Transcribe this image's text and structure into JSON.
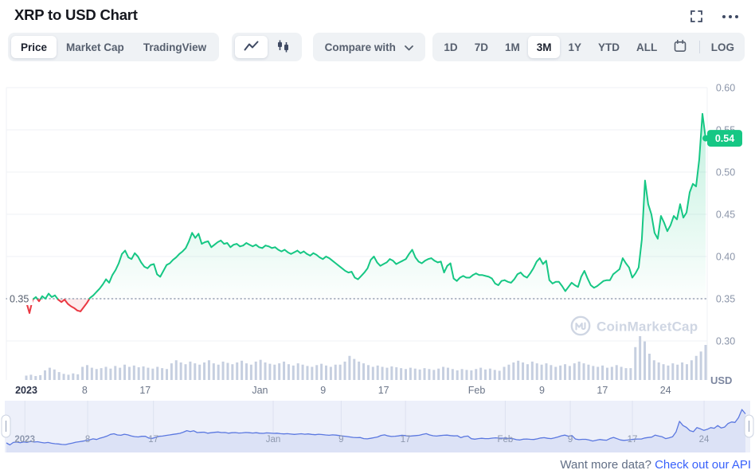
{
  "header": {
    "title": "XRP to USD Chart"
  },
  "toolbar": {
    "view_tabs": [
      {
        "label": "Price",
        "selected": true
      },
      {
        "label": "Market Cap",
        "selected": false
      },
      {
        "label": "TradingView",
        "selected": false
      }
    ],
    "chart_types": [
      {
        "name": "line-chart",
        "selected": true
      },
      {
        "name": "candlestick-chart",
        "selected": false
      }
    ],
    "compare_label": "Compare with",
    "ranges": [
      "1D",
      "7D",
      "1M",
      "3M",
      "1Y",
      "YTD",
      "ALL"
    ],
    "selected_range": "3M",
    "log_label": "LOG"
  },
  "watermark": {
    "text": "CoinMarketCap"
  },
  "footer": {
    "prompt": "Want more data?",
    "link": "Check out our API"
  },
  "chart_data": {
    "type": "line",
    "title": "XRP to USD, 3 month price chart",
    "unit_label": "USD",
    "baseline": 0.35,
    "baseline_label": "0.35",
    "last_price": 0.54,
    "last_price_label": "0.54",
    "ylim": [
      0.3,
      0.6
    ],
    "y_ticks": [
      "0.60",
      "0.55",
      "0.50",
      "0.45",
      "0.40",
      "0.35",
      "0.30"
    ],
    "x_ticks": [
      {
        "label": "2023",
        "pos": 0.0,
        "bold": true
      },
      {
        "label": "8",
        "pos": 0.086
      },
      {
        "label": "17",
        "pos": 0.175
      },
      {
        "label": "Jan",
        "pos": 0.344
      },
      {
        "label": "9",
        "pos": 0.437
      },
      {
        "label": "17",
        "pos": 0.526
      },
      {
        "label": "Feb",
        "pos": 0.663
      },
      {
        "label": "9",
        "pos": 0.759
      },
      {
        "label": "17",
        "pos": 0.848
      },
      {
        "label": "24",
        "pos": 0.941
      }
    ],
    "nav_tick_pos": [
      0.025,
      0.11,
      0.199,
      0.361,
      0.453,
      0.54,
      0.675,
      0.763,
      0.847,
      0.944
    ],
    "prices": [
      0.346,
      0.333,
      0.349,
      0.352,
      0.347,
      0.353,
      0.35,
      0.356,
      0.352,
      0.354,
      0.349,
      0.346,
      0.349,
      0.344,
      0.341,
      0.339,
      0.336,
      0.335,
      0.34,
      0.345,
      0.351,
      0.354,
      0.358,
      0.362,
      0.367,
      0.373,
      0.369,
      0.378,
      0.384,
      0.392,
      0.403,
      0.407,
      0.399,
      0.397,
      0.404,
      0.4,
      0.393,
      0.388,
      0.386,
      0.39,
      0.391,
      0.379,
      0.376,
      0.383,
      0.39,
      0.392,
      0.396,
      0.399,
      0.403,
      0.406,
      0.41,
      0.418,
      0.428,
      0.422,
      0.427,
      0.415,
      0.417,
      0.418,
      0.411,
      0.414,
      0.417,
      0.419,
      0.415,
      0.416,
      0.411,
      0.414,
      0.415,
      0.412,
      0.413,
      0.416,
      0.414,
      0.412,
      0.414,
      0.411,
      0.41,
      0.413,
      0.412,
      0.41,
      0.411,
      0.408,
      0.406,
      0.408,
      0.405,
      0.403,
      0.405,
      0.407,
      0.404,
      0.406,
      0.403,
      0.401,
      0.404,
      0.402,
      0.399,
      0.397,
      0.4,
      0.398,
      0.395,
      0.392,
      0.389,
      0.386,
      0.383,
      0.381,
      0.382,
      0.375,
      0.373,
      0.377,
      0.381,
      0.386,
      0.396,
      0.4,
      0.393,
      0.389,
      0.391,
      0.393,
      0.397,
      0.395,
      0.391,
      0.393,
      0.395,
      0.397,
      0.403,
      0.408,
      0.399,
      0.394,
      0.392,
      0.395,
      0.397,
      0.398,
      0.395,
      0.393,
      0.394,
      0.381,
      0.389,
      0.392,
      0.374,
      0.371,
      0.375,
      0.377,
      0.375,
      0.375,
      0.378,
      0.38,
      0.378,
      0.378,
      0.377,
      0.376,
      0.374,
      0.368,
      0.366,
      0.371,
      0.372,
      0.37,
      0.369,
      0.373,
      0.379,
      0.381,
      0.377,
      0.375,
      0.38,
      0.386,
      0.394,
      0.398,
      0.391,
      0.395,
      0.372,
      0.368,
      0.37,
      0.37,
      0.365,
      0.359,
      0.364,
      0.369,
      0.366,
      0.364,
      0.376,
      0.383,
      0.374,
      0.366,
      0.363,
      0.365,
      0.368,
      0.371,
      0.372,
      0.372,
      0.379,
      0.382,
      0.385,
      0.398,
      0.392,
      0.387,
      0.375,
      0.38,
      0.387,
      0.42,
      0.49,
      0.462,
      0.45,
      0.428,
      0.421,
      0.448,
      0.44,
      0.43,
      0.437,
      0.448,
      0.444,
      0.462,
      0.446,
      0.452,
      0.476,
      0.486,
      0.483,
      0.515,
      0.569,
      0.54
    ],
    "volume": [
      0.1,
      0.12,
      0.09,
      0.11,
      0.22,
      0.28,
      0.24,
      0.18,
      0.14,
      0.12,
      0.15,
      0.13,
      0.3,
      0.34,
      0.28,
      0.25,
      0.27,
      0.3,
      0.26,
      0.32,
      0.28,
      0.35,
      0.3,
      0.33,
      0.29,
      0.31,
      0.28,
      0.26,
      0.3,
      0.27,
      0.25,
      0.38,
      0.45,
      0.4,
      0.36,
      0.42,
      0.38,
      0.35,
      0.4,
      0.45,
      0.38,
      0.35,
      0.42,
      0.39,
      0.36,
      0.4,
      0.44,
      0.38,
      0.35,
      0.42,
      0.46,
      0.4,
      0.37,
      0.35,
      0.38,
      0.42,
      0.36,
      0.33,
      0.38,
      0.35,
      0.32,
      0.3,
      0.34,
      0.37,
      0.33,
      0.3,
      0.35,
      0.35,
      0.42,
      0.55,
      0.48,
      0.42,
      0.38,
      0.34,
      0.3,
      0.33,
      0.3,
      0.28,
      0.31,
      0.29,
      0.27,
      0.25,
      0.28,
      0.26,
      0.24,
      0.27,
      0.25,
      0.23,
      0.26,
      0.3,
      0.28,
      0.25,
      0.22,
      0.25,
      0.23,
      0.22,
      0.25,
      0.28,
      0.24,
      0.26,
      0.23,
      0.21,
      0.3,
      0.35,
      0.4,
      0.44,
      0.4,
      0.36,
      0.42,
      0.38,
      0.35,
      0.38,
      0.34,
      0.3,
      0.33,
      0.36,
      0.32,
      0.38,
      0.42,
      0.38,
      0.35,
      0.32,
      0.3,
      0.33,
      0.28,
      0.3,
      0.34,
      0.3,
      0.27,
      0.27,
      0.75,
      1.0,
      0.88,
      0.6,
      0.45,
      0.4,
      0.36,
      0.33,
      0.38,
      0.35,
      0.4,
      0.36,
      0.45,
      0.55,
      0.65,
      0.8
    ],
    "colors": {
      "up": "#16c784",
      "down": "#ea3943",
      "up_fill_top": "rgba(22,199,132,0.26)",
      "up_fill_bottom": "rgba(22,199,132,0.01)",
      "down_fill": "rgba(234,57,67,0.10)",
      "volume": "#c6cfe0",
      "grid": "#eff2f5",
      "baseline_dots": "#9aa3b5",
      "axis_text": "#8b95a9",
      "axis_text_dark": "#2b3247",
      "nav_bg": "#edf0fa",
      "nav_grid": "#dde1f0",
      "nav_line": "#5b78e0",
      "nav_fill": "#dce2f6",
      "watermark": "#cfd6e3",
      "badge_text": "#ffffff",
      "link": "#3861fb"
    }
  }
}
